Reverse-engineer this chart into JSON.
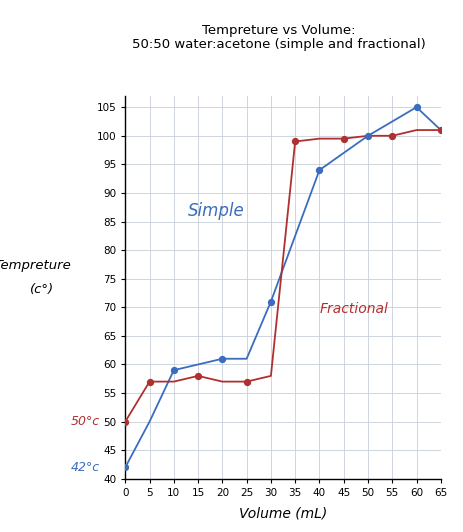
{
  "title_line1": "Tempreture vs Volume:",
  "title_line2": "50:50 water:acetone (simple and fractional)",
  "xlabel": "Volume (mL)",
  "ylabel_line1": "Tempreture",
  "ylabel_line2": "(c°)",
  "xlim": [
    0,
    65
  ],
  "ylim": [
    40,
    107
  ],
  "xticks": [
    0,
    5,
    10,
    15,
    20,
    25,
    30,
    35,
    40,
    45,
    50,
    55,
    60,
    65
  ],
  "yticks": [
    40,
    45,
    50,
    55,
    60,
    65,
    70,
    75,
    80,
    85,
    90,
    95,
    100,
    105
  ],
  "simple_x": [
    0,
    5,
    10,
    15,
    20,
    25,
    30,
    40,
    50,
    60,
    65
  ],
  "simple_y": [
    42,
    50,
    59,
    60,
    61,
    61,
    71,
    94,
    100,
    105,
    101
  ],
  "fractional_x": [
    0,
    5,
    10,
    15,
    20,
    25,
    30,
    35,
    40,
    45,
    50,
    55,
    60,
    65
  ],
  "fractional_y": [
    50,
    57,
    57,
    58,
    57,
    57,
    58,
    99,
    99.5,
    99.5,
    100,
    100,
    101,
    101
  ],
  "simple_color": "#3a6dbf",
  "fractional_color": "#b03030",
  "simple_label": "Simple",
  "fractional_label": "Fractional",
  "simple_dot_x": [
    0,
    10,
    20,
    30,
    40,
    50,
    60
  ],
  "simple_dot_y": [
    42,
    59,
    61,
    71,
    94,
    100,
    105
  ],
  "fractional_dot_x": [
    0,
    5,
    15,
    25,
    35,
    45,
    55,
    65
  ],
  "fractional_dot_y": [
    50,
    57,
    58,
    57,
    99,
    99.5,
    100,
    101
  ],
  "annotation_50c": "50°c",
  "annotation_42c": "42°c",
  "bg_color": "#ffffff",
  "grid_color": "#c8cfd8"
}
